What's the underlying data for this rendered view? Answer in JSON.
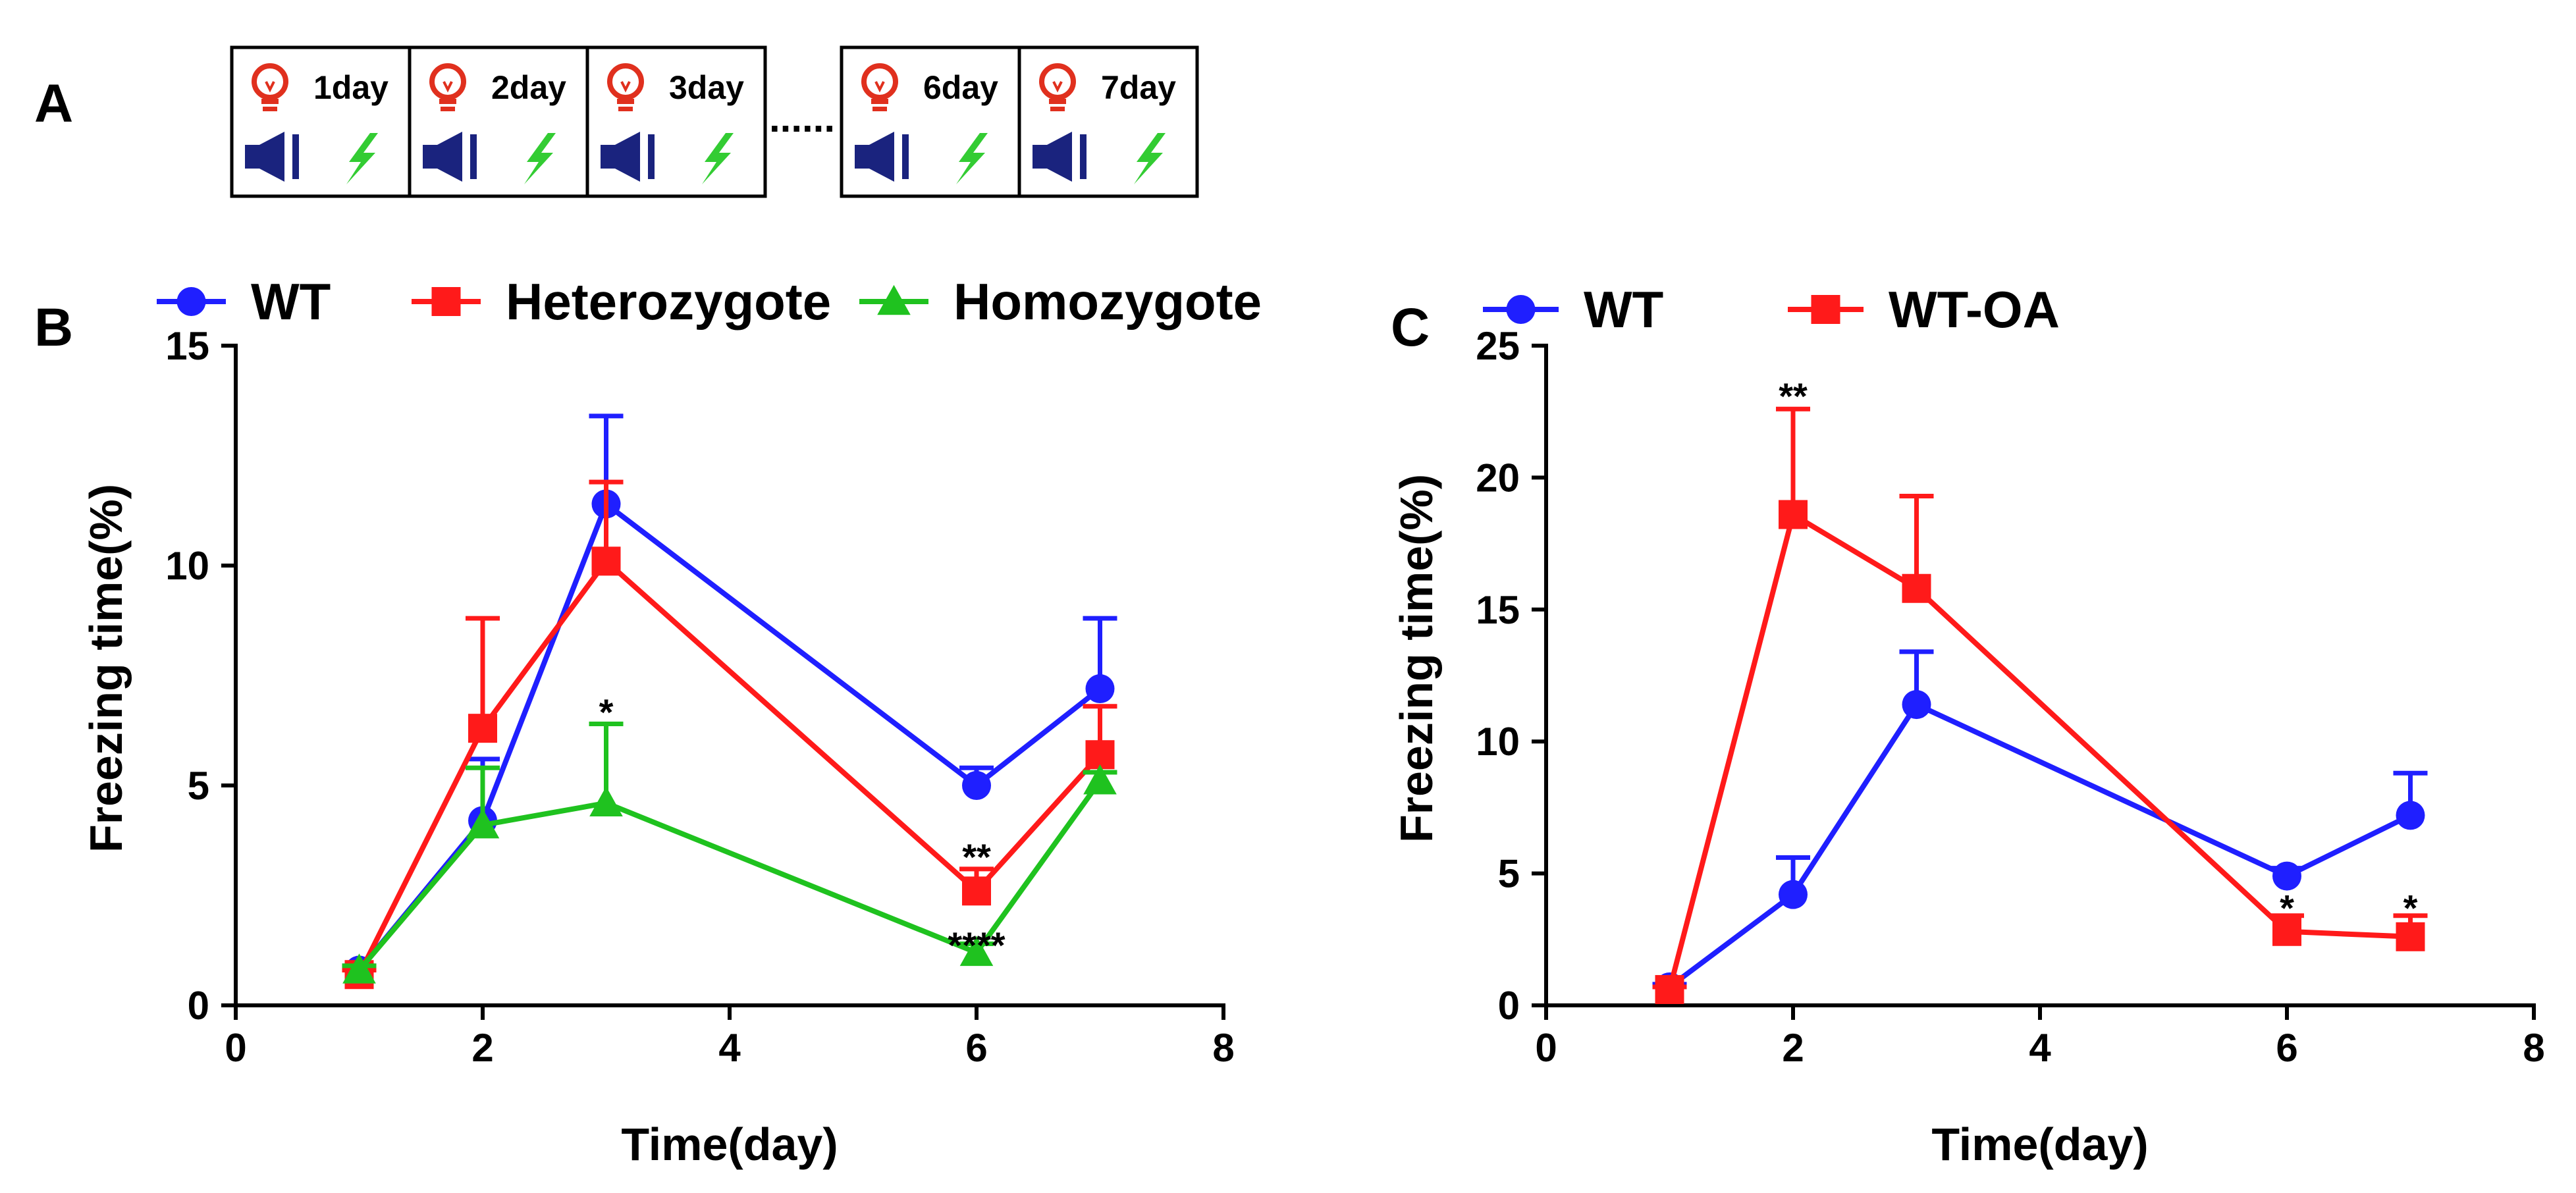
{
  "panel_a": {
    "letter": "A",
    "days": [
      "1day",
      "2day",
      "3day",
      "6day",
      "7day"
    ],
    "ellipsis": "......",
    "icons": {
      "bulb": "light-bulb-icon",
      "speaker": "speaker-icon",
      "shock": "lightning-icon"
    },
    "colors": {
      "bulb": "#e0301e",
      "speaker": "#1a237e",
      "shock": "#33cc33"
    }
  },
  "chart_data": [
    {
      "panel": "B",
      "type": "line",
      "xlabel": "Time(day)",
      "ylabel": "Freezing time(%)",
      "xlim": [
        0,
        8
      ],
      "ylim": [
        0,
        15
      ],
      "xticks": [
        0,
        2,
        4,
        6,
        8
      ],
      "yticks": [
        0,
        5,
        10,
        15
      ],
      "x": [
        1,
        2,
        3,
        6,
        7
      ],
      "legend_position": "top",
      "series": [
        {
          "name": "WT",
          "color": "#1f1fff",
          "marker": "circle",
          "values": [
            0.8,
            4.2,
            11.4,
            5.0,
            7.2
          ],
          "errors": [
            0.1,
            1.4,
            2.0,
            0.4,
            1.6
          ]
        },
        {
          "name": "Heterozygote",
          "color": "#ff1a1a",
          "marker": "square",
          "values": [
            0.7,
            6.3,
            10.1,
            2.6,
            5.7
          ],
          "errors": [
            0.1,
            2.5,
            1.8,
            0.5,
            1.1
          ]
        },
        {
          "name": "Homozygote",
          "color": "#1fc21f",
          "marker": "triangle",
          "values": [
            0.8,
            4.1,
            4.6,
            1.2,
            5.1
          ],
          "errors": [
            0.1,
            1.3,
            1.8,
            0.2,
            0.2
          ]
        }
      ],
      "annotations": [
        {
          "text": "*",
          "x": 3,
          "y": 6.5
        },
        {
          "text": "**",
          "x": 6,
          "y": 3.2
        },
        {
          "text": "****",
          "x": 6,
          "y": 1.2
        }
      ]
    },
    {
      "panel": "C",
      "type": "line",
      "xlabel": "Time(day)",
      "ylabel": "Freezing time(%)",
      "xlim": [
        0,
        8
      ],
      "ylim": [
        0,
        25
      ],
      "xticks": [
        0,
        2,
        4,
        6,
        8
      ],
      "yticks": [
        0,
        5,
        10,
        15,
        20,
        25
      ],
      "x_values": [
        1,
        2,
        3,
        6,
        7
      ],
      "legend_position": "top",
      "series": [
        {
          "name": "WT",
          "color": "#1f1fff",
          "marker": "circle",
          "values": [
            0.7,
            4.2,
            11.4,
            4.9,
            7.2
          ],
          "errors": [
            0.1,
            1.4,
            2.0,
            0.3,
            1.6
          ]
        },
        {
          "name": "WT-OA",
          "color": "#ff1a1a",
          "marker": "square",
          "values": [
            0.6,
            18.6,
            15.8,
            2.8,
            2.6
          ],
          "errors": [
            0.1,
            4.0,
            3.5,
            0.6,
            0.8
          ]
        }
      ],
      "annotations": [
        {
          "text": "**",
          "x": 2,
          "y": 22.8
        },
        {
          "text": "*",
          "x": 6,
          "y": 3.4
        },
        {
          "text": "*",
          "x": 7,
          "y": 3.4
        }
      ]
    }
  ]
}
